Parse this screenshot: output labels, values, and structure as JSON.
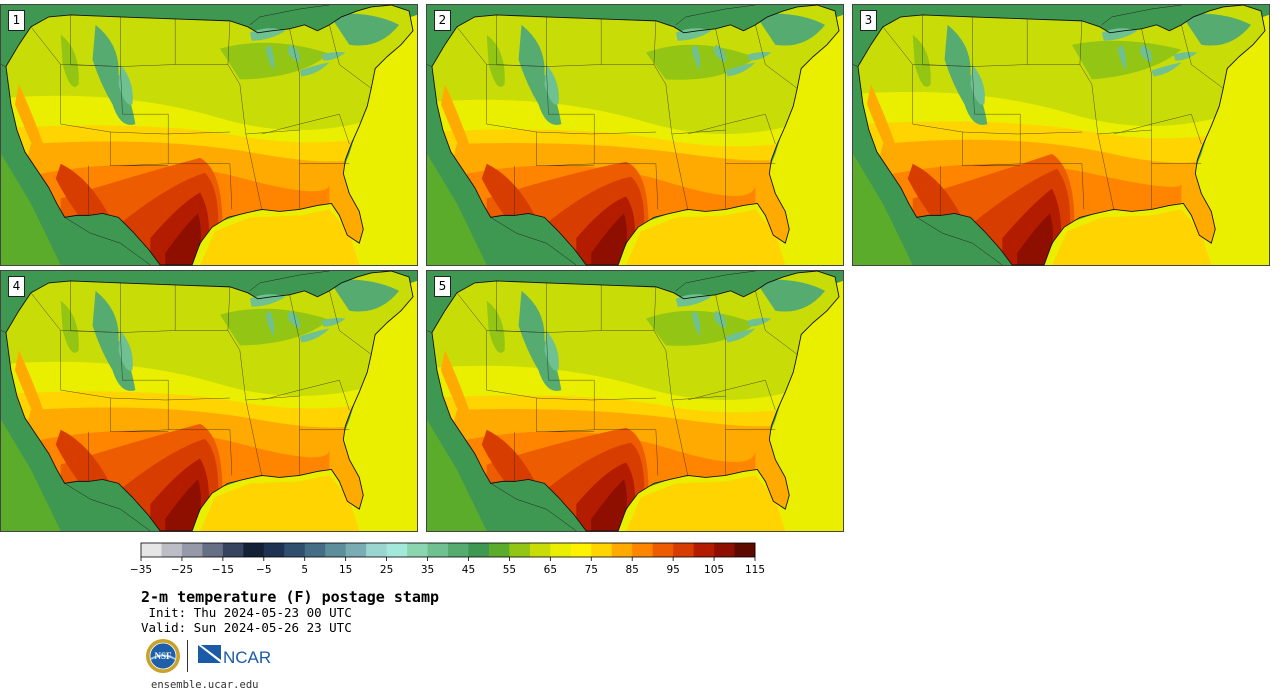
{
  "panels": [
    {
      "label": "1"
    },
    {
      "label": "2"
    },
    {
      "label": "3"
    },
    {
      "label": "4"
    },
    {
      "label": "5"
    }
  ],
  "colorbar": {
    "colors": [
      "#e6e6e6",
      "#bdbdc6",
      "#969aa8",
      "#676f85",
      "#38445f",
      "#132035",
      "#1e3352",
      "#304e6d",
      "#456d86",
      "#5d8e9c",
      "#7aadb3",
      "#9bd5cf",
      "#a3e9db",
      "#8ad6b0",
      "#6fc191",
      "#56ab71",
      "#3f9851",
      "#5cac2b",
      "#93c514",
      "#c8dc07",
      "#eaef00",
      "#fff200",
      "#ffd400",
      "#ffaa00",
      "#ff8400",
      "#ee5c00",
      "#d83d00",
      "#b41c00",
      "#8e0e00",
      "#5c0a00"
    ],
    "ticks": [
      "−35",
      "−25",
      "−15",
      "−5",
      "5",
      "15",
      "25",
      "35",
      "45",
      "55",
      "65",
      "75",
      "85",
      "95",
      "105",
      "115"
    ]
  },
  "title": "2-m temperature (F) postage stamp",
  "init_line": " Init: Thu 2024-05-23 00 UTC",
  "valid_line": "Valid: Sun 2024-05-26 23 UTC",
  "logos": {
    "nsf": "NSF",
    "ncar": "NCAR"
  },
  "url": "ensemble.ucar.edu"
}
